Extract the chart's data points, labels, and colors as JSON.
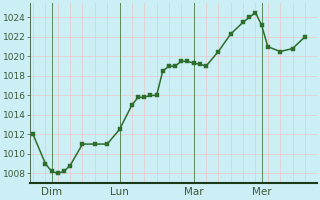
{
  "background_color": "#cceef5",
  "grid_color_h": "#e8c8c8",
  "grid_color_v": "#e8c8c8",
  "line_color": "#2d6e2d",
  "marker_color": "#2d6e2d",
  "ylim": [
    1007,
    1025.5
  ],
  "yticks": [
    1008,
    1010,
    1012,
    1014,
    1016,
    1018,
    1020,
    1022,
    1024
  ],
  "day_labels": [
    "Dim",
    "Lun",
    "Mar",
    "Mer"
  ],
  "x": [
    0,
    2,
    3,
    4,
    5,
    6,
    8,
    10,
    12,
    14,
    16,
    17,
    18,
    19,
    20,
    21,
    22,
    23,
    24,
    25,
    26,
    27,
    28,
    30,
    32,
    34,
    35,
    36,
    37,
    38,
    40,
    42,
    44
  ],
  "y": [
    1012.0,
    1009.0,
    1008.2,
    1008.0,
    1008.2,
    1008.8,
    1011.0,
    1011.0,
    1011.0,
    1012.5,
    1015.0,
    1015.8,
    1015.8,
    1016.0,
    1016.0,
    1018.5,
    1019.0,
    1019.0,
    1019.5,
    1019.5,
    1019.3,
    1019.2,
    1019.0,
    1020.5,
    1022.3,
    1023.5,
    1024.0,
    1024.5,
    1023.2,
    1021.0,
    1020.5,
    1020.8,
    1022.0
  ],
  "xlim": [
    -0.5,
    46
  ],
  "tick_label_fontsize": 6.5,
  "axis_label_fontsize": 7.5,
  "line_width": 1.1,
  "marker_size": 2.5,
  "vline_positions": [
    3,
    14,
    26,
    37
  ],
  "vline_color": "#5a8a5a",
  "spine_bottom_color": "#1a3a1a",
  "spine_color": "#3a5a3a"
}
